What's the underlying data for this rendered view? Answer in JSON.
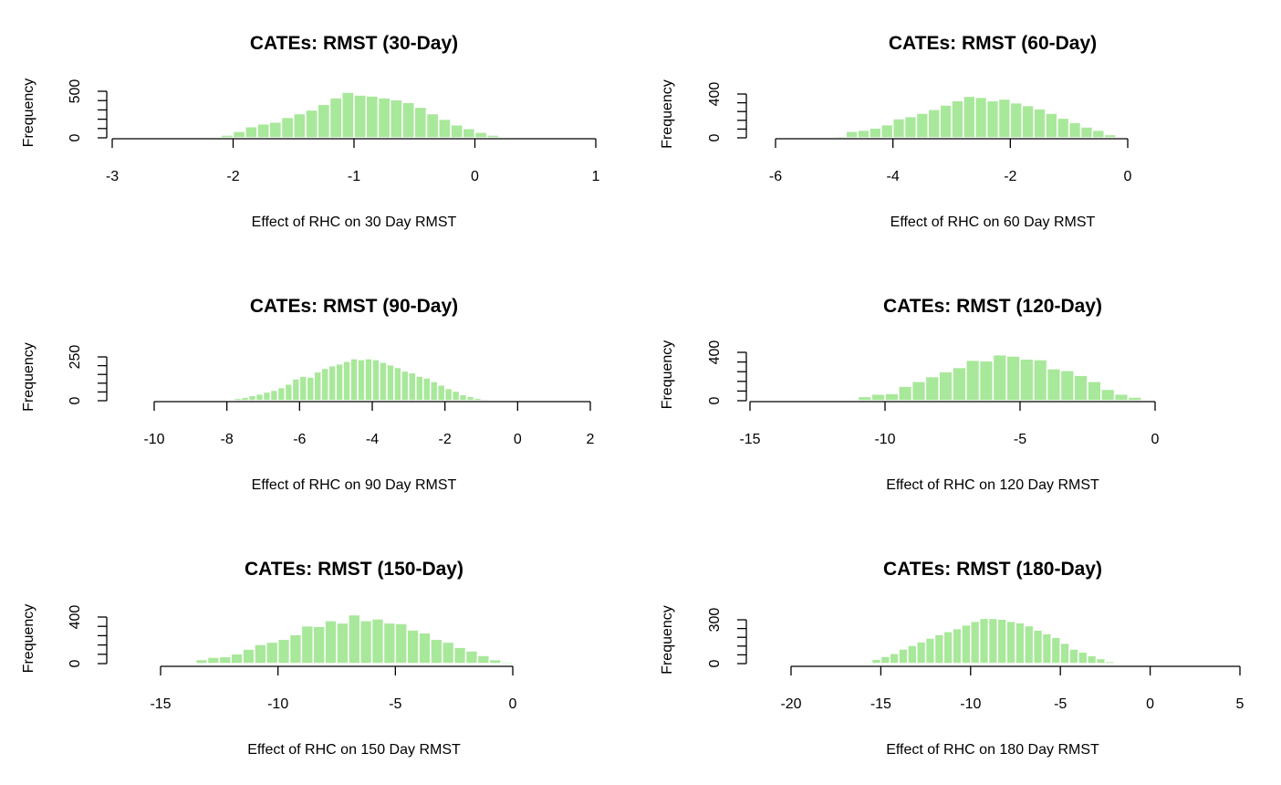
{
  "figure": {
    "bar_color": "#a8e89a",
    "bar_edge": "#ffffff",
    "axis_color": "#000000"
  },
  "chart_data": [
    {
      "type": "bar",
      "title": "CATEs: RMST (30-Day)",
      "xlabel": "Effect of RHC on 30 Day RMST",
      "ylabel": "Frequency",
      "xlim": [
        -3,
        1
      ],
      "xticks": [
        -3,
        -2,
        -1,
        0,
        1
      ],
      "ylim": [
        0,
        500
      ],
      "yticks": [
        0,
        500
      ],
      "bin_width": 0.1,
      "bin_start": -2.3,
      "values": [
        3,
        8,
        30,
        70,
        120,
        150,
        170,
        220,
        260,
        300,
        360,
        430,
        490,
        460,
        450,
        430,
        410,
        380,
        330,
        260,
        200,
        140,
        100,
        60,
        30,
        15,
        5
      ]
    },
    {
      "type": "bar",
      "title": "CATEs: RMST (60-Day)",
      "xlabel": "Effect of RHC on 60 Day RMST",
      "ylabel": "Frequency",
      "xlim": [
        -6,
        0
      ],
      "xticks": [
        -6,
        -4,
        -2,
        0
      ],
      "ylim": [
        0,
        400
      ],
      "yticks": [
        0,
        400
      ],
      "bin_width": 0.2,
      "bin_start": -5.4,
      "values": [
        3,
        5,
        15,
        60,
        70,
        90,
        120,
        175,
        195,
        225,
        260,
        300,
        340,
        380,
        370,
        340,
        355,
        320,
        295,
        265,
        225,
        180,
        140,
        100,
        70,
        30,
        10,
        5
      ]
    },
    {
      "type": "bar",
      "title": "CATEs: RMST (90-Day)",
      "xlabel": "Effect of RHC on 90 Day RMST",
      "ylabel": "Frequency",
      "xlim": [
        -10,
        2
      ],
      "xticks": [
        -10,
        -8,
        -6,
        -4,
        -2,
        0,
        2
      ],
      "ylim": [
        0,
        250
      ],
      "yticks": [
        0,
        250
      ],
      "bin_width": 0.2,
      "bin_start": -8.4,
      "values": [
        2,
        4,
        8,
        14,
        20,
        30,
        38,
        50,
        60,
        75,
        95,
        125,
        140,
        135,
        165,
        185,
        200,
        210,
        225,
        240,
        235,
        240,
        235,
        220,
        205,
        190,
        170,
        160,
        140,
        130,
        110,
        90,
        70,
        55,
        35,
        25,
        15,
        10,
        6,
        3,
        2
      ]
    },
    {
      "type": "bar",
      "title": "CATEs: RMST (120-Day)",
      "xlabel": "Effect of RHC on 120 Day RMST",
      "ylabel": "Frequency",
      "xlim": [
        -15,
        0
      ],
      "xticks": [
        -15,
        -10,
        -5,
        0
      ],
      "ylim": [
        0,
        400
      ],
      "yticks": [
        0,
        400
      ],
      "bin_width": 0.5,
      "bin_start": -11,
      "values": [
        35,
        55,
        60,
        120,
        160,
        200,
        240,
        275,
        335,
        330,
        380,
        370,
        345,
        340,
        265,
        250,
        210,
        160,
        95,
        55,
        30,
        10
      ]
    },
    {
      "type": "bar",
      "title": "CATEs: RMST (150-Day)",
      "xlabel": "Effect of RHC on 150 Day RMST",
      "ylabel": "Frequency",
      "xlim": [
        -15,
        0
      ],
      "xticks": [
        -15,
        -10,
        -5,
        0
      ],
      "ylim": [
        0,
        400
      ],
      "yticks": [
        0,
        400
      ],
      "bin_width": 0.5,
      "bin_start": -14.5,
      "values": [
        5,
        10,
        35,
        55,
        60,
        85,
        125,
        165,
        185,
        210,
        250,
        325,
        320,
        370,
        350,
        420,
        370,
        385,
        350,
        345,
        290,
        265,
        210,
        185,
        140,
        110,
        70,
        35,
        15,
        5
      ]
    },
    {
      "type": "bar",
      "title": "CATEs: RMST (180-Day)",
      "xlabel": "Effect of RHC on 180 Day RMST",
      "ylabel": "Frequency",
      "xlim": [
        -20,
        5
      ],
      "xticks": [
        -20,
        -15,
        -10,
        -5,
        0,
        5
      ],
      "ylim": [
        0,
        300
      ],
      "yticks": [
        0,
        300
      ],
      "bin_width": 0.5,
      "bin_start": -16.5,
      "values": [
        5,
        10,
        30,
        50,
        70,
        100,
        125,
        150,
        175,
        200,
        220,
        240,
        265,
        290,
        310,
        310,
        305,
        290,
        280,
        260,
        230,
        205,
        180,
        140,
        100,
        80,
        55,
        35,
        15,
        8,
        3
      ]
    }
  ]
}
